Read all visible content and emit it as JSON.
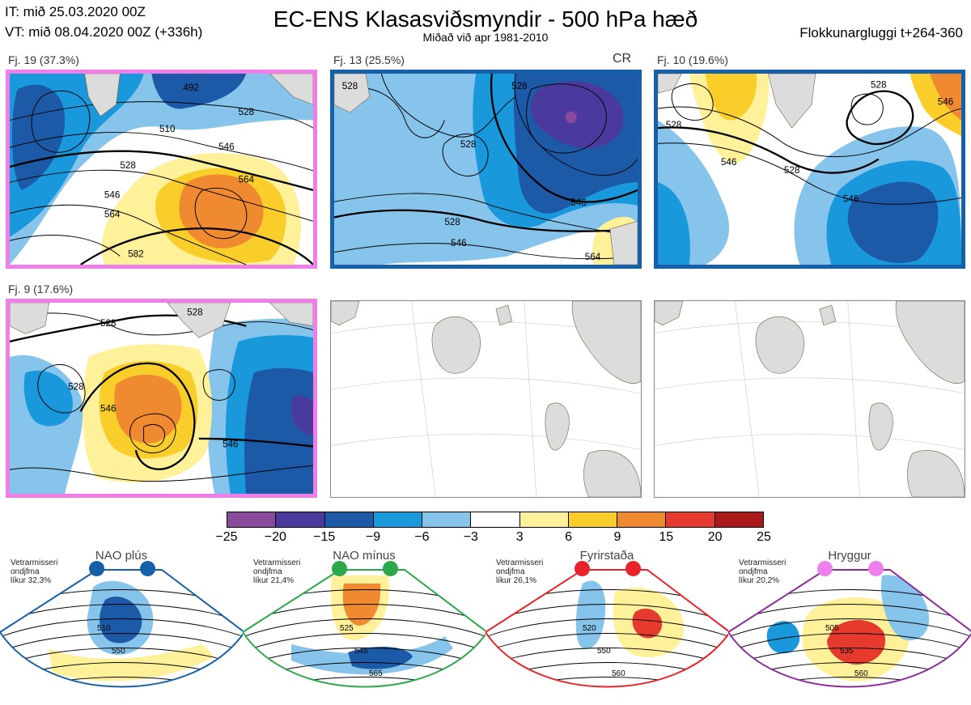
{
  "header": {
    "it_line": "IT: mið 25.03.2020 00Z",
    "vt_line": "VT: mið 08.04.2020 00Z  (+336h)",
    "title": "EC-ENS Klasasviðsmyndir - 500 hPa hæð",
    "subtitle": "Miðað við apr 1981-2010",
    "window": "Flokkunargluggi t+264-360"
  },
  "panels": [
    {
      "label": "Fj. 19 (37.3%)",
      "frame": "#f07ee8",
      "tag": "",
      "contours": [
        "492",
        "528",
        "510",
        "546",
        "528",
        "546",
        "564",
        "564",
        "582"
      ]
    },
    {
      "label": "Fj. 13 (25.5%)",
      "frame": "#1660a8",
      "tag": "CR",
      "contours": [
        "528",
        "528",
        "528",
        "546",
        "528",
        "546",
        "564"
      ]
    },
    {
      "label": "Fj. 10 (19.6%)",
      "frame": "#1660a8",
      "tag": "",
      "contours": [
        "528",
        "528",
        "546",
        "528",
        "546",
        "546"
      ]
    },
    {
      "label": "Fj. 9 (17.6%)",
      "frame": "#f07ee8",
      "tag": "",
      "contours": [
        "528",
        "528",
        "528",
        "546",
        "546"
      ]
    }
  ],
  "colorbar": {
    "colors": [
      "#8a4a9c",
      "#4a3a9e",
      "#1c5aa8",
      "#1a98dc",
      "#86c4ec",
      "#ffffff",
      "#fff09a",
      "#f9cd2a",
      "#f08a30",
      "#e63a2e",
      "#aa1a1a"
    ],
    "ticks": [
      "−25",
      "−20",
      "−15",
      "−9",
      "−6",
      "−3",
      "3",
      "6",
      "9",
      "15",
      "20",
      "25"
    ]
  },
  "regimes": [
    {
      "title": "NAO plús",
      "note": "Vetrarmisseri\nondjfma\nlíkur 32,3%",
      "color": "#1660a8",
      "contours": [
        "510",
        "550"
      ]
    },
    {
      "title": "NAO mínus",
      "note": "Vetrarmisseri\nondjfma\nlíkur 21,4%",
      "color": "#2aa84a",
      "contours": [
        "525",
        "545",
        "565"
      ]
    },
    {
      "title": "Fyrirstaða",
      "note": "Vetrarmisseri\nondjfma\nlíkur 26,1%",
      "color": "#e8232a",
      "contours": [
        "520",
        "550",
        "560"
      ]
    },
    {
      "title": "Hryggur",
      "note": "Vetrarmisseri\nondjfma\nlíkur 20,2%",
      "color": "#8e2a9e",
      "dot_color": "#ee80ee",
      "contours": [
        "505",
        "535",
        "560"
      ]
    }
  ]
}
